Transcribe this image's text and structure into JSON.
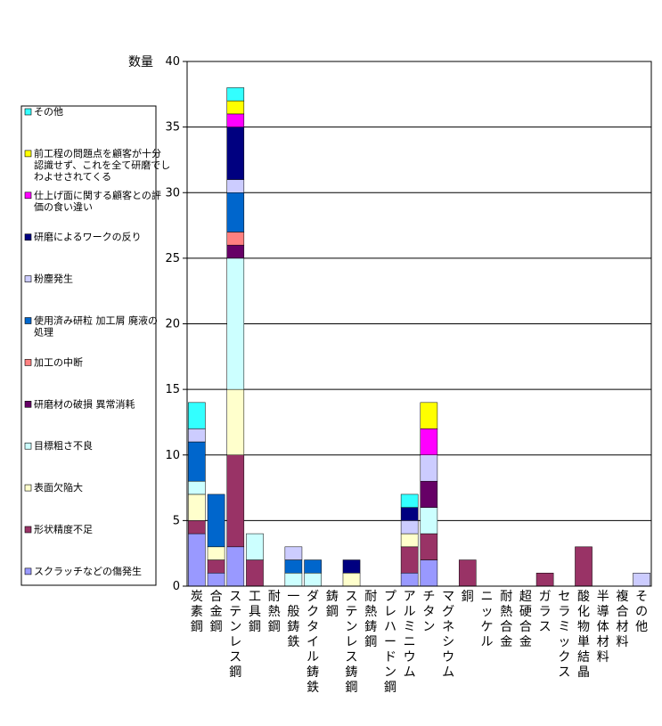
{
  "chart_data": {
    "type": "bar",
    "stacked": true,
    "ylabel": "数量",
    "ylim": [
      0,
      40
    ],
    "yticks": [
      0,
      5,
      10,
      15,
      20,
      25,
      30,
      35,
      40
    ],
    "grid": true,
    "legend_position": "left",
    "categories": [
      "炭素鋼",
      "合金鋼",
      "ステンレス鋼",
      "工具鋼",
      "耐熱鋼",
      "一般鋳鉄",
      "ダクタイル鋳鉄",
      "鋳鋼",
      "ステンレス鋳鋼",
      "耐熱鋳鋼",
      "プレハードン鋼",
      "アルミニウム",
      "チタン",
      "マグネシウム",
      "銅",
      "ニッケル",
      "耐熱合金",
      "超硬合金",
      "ガラス",
      "セラミックス",
      "酸化物単結晶",
      "半導体材料",
      "複合材料",
      "その他"
    ],
    "series": [
      {
        "name": "スクラッチなどの傷発生",
        "color": "#9999ff",
        "values": [
          4,
          1,
          3,
          0,
          0,
          0,
          0,
          0,
          0,
          0,
          0,
          1,
          2,
          0,
          0,
          0,
          0,
          0,
          0,
          0,
          0,
          0,
          0,
          0
        ]
      },
      {
        "name": "形状精度不足",
        "color": "#993366",
        "values": [
          1,
          1,
          7,
          2,
          0,
          0,
          0,
          0,
          0,
          0,
          0,
          2,
          2,
          0,
          2,
          0,
          0,
          0,
          1,
          0,
          3,
          0,
          0,
          0
        ]
      },
      {
        "name": "表面欠陥大",
        "color": "#ffffcc",
        "values": [
          2,
          1,
          5,
          0,
          0,
          0,
          0,
          0,
          1,
          0,
          0,
          1,
          0,
          0,
          0,
          0,
          0,
          0,
          0,
          0,
          0,
          0,
          0,
          0
        ]
      },
      {
        "name": "目標粗さ不良",
        "color": "#ccffff",
        "values": [
          1,
          0,
          10,
          2,
          0,
          1,
          1,
          0,
          0,
          0,
          0,
          0,
          2,
          0,
          0,
          0,
          0,
          0,
          0,
          0,
          0,
          0,
          0,
          0
        ]
      },
      {
        "name": "研磨材の破損 異常消耗",
        "color": "#660066",
        "values": [
          0,
          0,
          1,
          0,
          0,
          0,
          0,
          0,
          0,
          0,
          0,
          0,
          2,
          0,
          0,
          0,
          0,
          0,
          0,
          0,
          0,
          0,
          0,
          0
        ]
      },
      {
        "name": "加工の中断",
        "color": "#ff8080",
        "values": [
          0,
          0,
          1,
          0,
          0,
          0,
          0,
          0,
          0,
          0,
          0,
          0,
          0,
          0,
          0,
          0,
          0,
          0,
          0,
          0,
          0,
          0,
          0,
          0
        ]
      },
      {
        "name": "使用済み研粒 加工屑 廃液の処理",
        "color": "#0066cc",
        "values": [
          3,
          4,
          3,
          0,
          0,
          1,
          1,
          0,
          0,
          0,
          0,
          0,
          0,
          0,
          0,
          0,
          0,
          0,
          0,
          0,
          0,
          0,
          0,
          0
        ]
      },
      {
        "name": "粉塵発生",
        "color": "#ccccff",
        "values": [
          1,
          0,
          1,
          0,
          0,
          1,
          0,
          0,
          0,
          0,
          0,
          1,
          2,
          0,
          0,
          0,
          0,
          0,
          0,
          0,
          0,
          0,
          0,
          1
        ]
      },
      {
        "name": "研磨によるワークの反り",
        "color": "#000080",
        "values": [
          0,
          0,
          4,
          0,
          0,
          0,
          0,
          0,
          1,
          0,
          0,
          1,
          0,
          0,
          0,
          0,
          0,
          0,
          0,
          0,
          0,
          0,
          0,
          0
        ]
      },
      {
        "name": "仕上げ面に関する顧客との評価の食い違い",
        "color": "#ff00ff",
        "values": [
          0,
          0,
          1,
          0,
          0,
          0,
          0,
          0,
          0,
          0,
          0,
          0,
          2,
          0,
          0,
          0,
          0,
          0,
          0,
          0,
          0,
          0,
          0,
          0
        ]
      },
      {
        "name": "前工程の問題点を顧客が十分認識せず、これを全て研磨でしわよせされてくる",
        "color": "#ffff00",
        "values": [
          0,
          0,
          1,
          0,
          0,
          0,
          0,
          0,
          0,
          0,
          0,
          0,
          2,
          0,
          0,
          0,
          0,
          0,
          0,
          0,
          0,
          0,
          0,
          0
        ]
      },
      {
        "name": "その他",
        "color": "#33ffff",
        "values": [
          2,
          0,
          1,
          0,
          0,
          0,
          0,
          0,
          0,
          0,
          0,
          1,
          0,
          0,
          0,
          0,
          0,
          0,
          0,
          0,
          0,
          0,
          0,
          0
        ]
      }
    ]
  },
  "legend_items": [
    {
      "name": "その他",
      "color": "#33ffff",
      "lines": [
        "その他"
      ]
    },
    {
      "name": "前工程の問題点を顧客が十分認識せず、これを全て研磨でしわよせされてくる",
      "color": "#ffff00",
      "lines": [
        "前工程の問題点を顧客が十分",
        "認識せず、これを全て研磨でし",
        "わよせされてくる"
      ]
    },
    {
      "name": "仕上げ面に関する顧客との評価の食い違い",
      "color": "#ff00ff",
      "lines": [
        "仕上げ面に関する顧客との評",
        "価の食い違い"
      ]
    },
    {
      "name": "研磨によるワークの反り",
      "color": "#000080",
      "lines": [
        "研磨によるワークの反り"
      ]
    },
    {
      "name": "粉塵発生",
      "color": "#ccccff",
      "lines": [
        "粉塵発生"
      ]
    },
    {
      "name": "使用済み研粒 加工屑 廃液の処理",
      "color": "#0066cc",
      "lines": [
        "使用済み研粒 加工屑 廃液の",
        "処理"
      ]
    },
    {
      "name": "加工の中断",
      "color": "#ff8080",
      "lines": [
        "加工の中断"
      ]
    },
    {
      "name": "研磨材の破損 異常消耗",
      "color": "#660066",
      "lines": [
        "研磨材の破損 異常消耗"
      ]
    },
    {
      "name": "目標粗さ不良",
      "color": "#ccffff",
      "lines": [
        "目標粗さ不良"
      ]
    },
    {
      "name": "表面欠陥大",
      "color": "#ffffcc",
      "lines": [
        "表面欠陥大"
      ]
    },
    {
      "name": "形状精度不足",
      "color": "#993366",
      "lines": [
        "形状精度不足"
      ]
    },
    {
      "name": "スクラッチなどの傷発生",
      "color": "#9999ff",
      "lines": [
        "スクラッチなどの傷発生"
      ]
    }
  ]
}
